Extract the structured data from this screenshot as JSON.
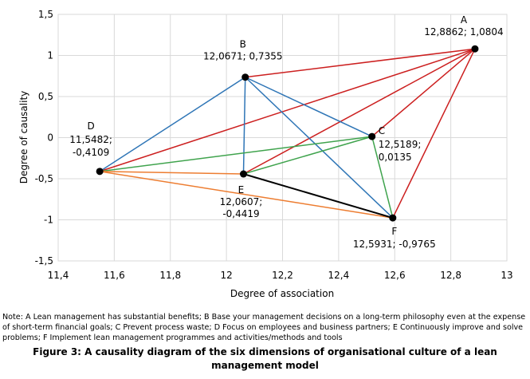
{
  "chart_data": {
    "type": "scatter",
    "xlabel": "Degree of association",
    "ylabel": "Degree of causality",
    "xlim": [
      11.4,
      13
    ],
    "ylim": [
      -1.5,
      1.5
    ],
    "x_ticks": [
      "11,4",
      "11,6",
      "11,8",
      "12",
      "12,2",
      "12,4",
      "12,6",
      "12,8",
      "13"
    ],
    "y_ticks": [
      "1,5",
      "1",
      "0,5",
      "0",
      "-0,5",
      "-1",
      "-1,5"
    ],
    "points": [
      {
        "id": "A",
        "x": 12.8862,
        "y": 1.0804,
        "coord_text": "12,8862; 1,0804"
      },
      {
        "id": "B",
        "x": 12.0671,
        "y": 0.7355,
        "coord_text": "12,0671; 0,7355"
      },
      {
        "id": "C",
        "x": 12.5189,
        "y": 0.0135,
        "coord_text_1": "12,5189;",
        "coord_text_2": "0,0135"
      },
      {
        "id": "D",
        "x": 11.5482,
        "y": -0.4109,
        "coord_text_1": "11,5482;",
        "coord_text_2": "-0,4109"
      },
      {
        "id": "E",
        "x": 12.0607,
        "y": -0.4419,
        "coord_text_1": "12,0607;",
        "coord_text_2": "-0,4419"
      },
      {
        "id": "F",
        "x": 12.5931,
        "y": -0.9765,
        "coord_text": "12,5931; -0,9765"
      }
    ],
    "edges": [
      {
        "from": "A",
        "to": "B",
        "color": "#cc1f1f"
      },
      {
        "from": "A",
        "to": "C",
        "color": "#cc1f1f"
      },
      {
        "from": "A",
        "to": "D",
        "color": "#cc1f1f"
      },
      {
        "from": "A",
        "to": "E",
        "color": "#cc1f1f"
      },
      {
        "from": "A",
        "to": "F",
        "color": "#cc1f1f"
      },
      {
        "from": "B",
        "to": "C",
        "color": "#2e75b6"
      },
      {
        "from": "B",
        "to": "D",
        "color": "#2e75b6"
      },
      {
        "from": "B",
        "to": "E",
        "color": "#2e75b6"
      },
      {
        "from": "B",
        "to": "F",
        "color": "#2e75b6"
      },
      {
        "from": "C",
        "to": "D",
        "color": "#3fa34d"
      },
      {
        "from": "C",
        "to": "E",
        "color": "#3fa34d"
      },
      {
        "from": "C",
        "to": "F",
        "color": "#3fa34d"
      },
      {
        "from": "D",
        "to": "E",
        "color": "#ed7d31"
      },
      {
        "from": "D",
        "to": "F",
        "color": "#ed7d31"
      },
      {
        "from": "E",
        "to": "F",
        "color": "#000000"
      }
    ],
    "colors": {
      "grid": "#d9d9d9",
      "plot_border": "#d9d9d9",
      "point": "#000000"
    }
  },
  "note": "Note: A Lean management has substantial benefits; B Base your management decisions on a long-term philosophy even at the expense of short-term financial goals; C Prevent process waste; D Focus on employees and business partners; E Continuously improve and solve problems; F Implement lean management programmes and activities/methods and tools",
  "caption": "Figure 3: A causality diagram of the six dimensions of organisational culture of a lean management model"
}
